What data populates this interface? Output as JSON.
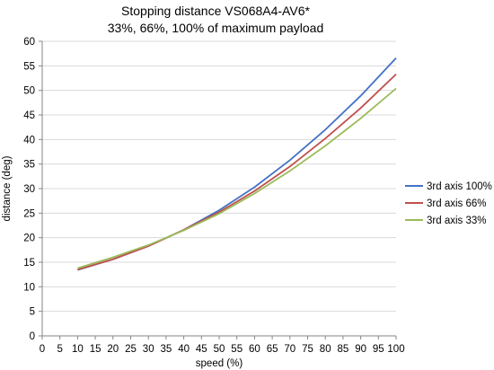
{
  "chart_data": {
    "type": "line",
    "title": "Stopping distance VS068A4-AV6*",
    "subtitle": "33%, 66%, 100% of maximum payload",
    "xlabel": "speed (%)",
    "ylabel": "distance (deg)",
    "xlim": [
      0,
      100
    ],
    "ylim": [
      0,
      60
    ],
    "x_ticks": [
      "0",
      "5",
      "10",
      "15",
      "20",
      "25",
      "30",
      "35",
      "40",
      "45",
      "50",
      "55",
      "60",
      "65",
      "70",
      "75",
      "80",
      "85",
      "90",
      "95",
      "100"
    ],
    "y_ticks": [
      "0",
      "5",
      "10",
      "15",
      "20",
      "25",
      "30",
      "35",
      "40",
      "45",
      "50",
      "55",
      "60"
    ],
    "grid": "horizontal",
    "legend_position": "right",
    "x": [
      10,
      20,
      30,
      40,
      50,
      60,
      70,
      80,
      90,
      100
    ],
    "series": [
      {
        "name": "3rd axis 100%",
        "color": "#4472c4",
        "values": [
          13.4,
          15.6,
          18.3,
          21.6,
          25.6,
          30.3,
          35.8,
          42.0,
          48.9,
          56.6
        ]
      },
      {
        "name": "3rd axis 66%",
        "color": "#c0504d",
        "values": [
          13.5,
          15.6,
          18.3,
          21.6,
          25.2,
          29.5,
          34.5,
          40.2,
          46.4,
          53.3
        ]
      },
      {
        "name": "3rd axis 33%",
        "color": "#9bbb59",
        "values": [
          13.8,
          16.0,
          18.5,
          21.5,
          24.9,
          29.0,
          33.6,
          38.7,
          44.3,
          50.4
        ]
      }
    ]
  }
}
